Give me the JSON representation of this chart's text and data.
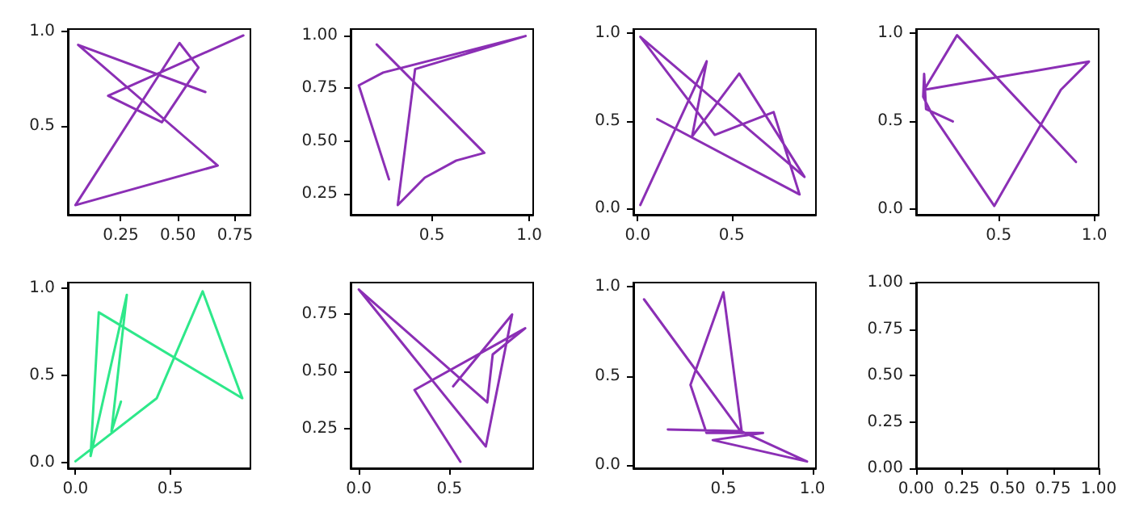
{
  "chart_data": [
    {
      "type": "line",
      "x": [
        0.62,
        0.064,
        0.674,
        0.052,
        0.507,
        0.59,
        0.43,
        0.195,
        0.786
      ],
      "series": [
        {
          "color": "#8b2fb5",
          "values": [
            0.68,
            0.93,
            0.29,
            0.08,
            0.94,
            0.81,
            0.52,
            0.66,
            0.98
          ]
        }
      ],
      "xlim": [
        0.019,
        0.817
      ],
      "ylim": [
        0.029,
        1.014
      ],
      "xticks": [
        {
          "value": 0.25,
          "label": "0.25"
        },
        {
          "value": 0.5,
          "label": "0.50"
        },
        {
          "value": 0.75,
          "label": "0.75"
        }
      ],
      "yticks": [
        {
          "value": 0.5,
          "label": "0.5"
        },
        {
          "value": 1,
          "label": "1.0"
        }
      ],
      "grid": false
    },
    {
      "type": "line",
      "x": [
        0.217,
        0.769,
        0.625,
        0.464,
        0.325,
        0.414,
        0.981,
        0.25,
        0.125,
        0.28
      ],
      "series": [
        {
          "color": "#8b2fb5",
          "values": [
            0.957,
            0.443,
            0.407,
            0.326,
            0.196,
            0.84,
            0.997,
            0.824,
            0.763,
            0.318
          ]
        }
      ],
      "xlim": [
        0.083,
        1.02
      ],
      "ylim": [
        0.15,
        1.03
      ],
      "xticks": [
        {
          "value": 0.5,
          "label": "0.5"
        },
        {
          "value": 1,
          "label": "1.0"
        }
      ],
      "yticks": [
        {
          "value": 0.25,
          "label": "0.25"
        },
        {
          "value": 0.5,
          "label": "0.50"
        },
        {
          "value": 0.75,
          "label": "0.75"
        },
        {
          "value": 1,
          "label": "1.00"
        }
      ],
      "grid": false
    },
    {
      "type": "line",
      "x": [
        0.014,
        0.367,
        0.289,
        0.54,
        0.887,
        0.014,
        0.41,
        0.723,
        0.861,
        0.104
      ],
      "series": [
        {
          "color": "#8b2fb5",
          "values": [
            0.02,
            0.84,
            0.41,
            0.77,
            0.18,
            0.98,
            0.42,
            0.55,
            0.08,
            0.51
          ]
        }
      ],
      "xlim": [
        -0.023,
        0.948
      ],
      "ylim": [
        -0.036,
        1.024
      ],
      "xticks": [
        {
          "value": 0,
          "label": "0.0"
        },
        {
          "value": 0.5,
          "label": "0.5"
        }
      ],
      "yticks": [
        {
          "value": 0,
          "label": "0.0"
        },
        {
          "value": 0.5,
          "label": "0.5"
        },
        {
          "value": 1,
          "label": "1.0"
        }
      ],
      "grid": false
    },
    {
      "type": "line",
      "x": [
        0.904,
        0.282,
        0.11,
        0.972,
        0.825,
        0.477,
        0.147,
        0.105,
        0.11,
        0.12,
        0.26
      ],
      "series": [
        {
          "color": "#8b2fb5",
          "values": [
            0.27,
            0.99,
            0.68,
            0.84,
            0.68,
            0.02,
            0.55,
            0.64,
            0.77,
            0.57,
            0.5
          ]
        }
      ],
      "xlim": [
        0.068,
        1.023
      ],
      "ylim": [
        -0.03,
        1.025
      ],
      "xticks": [
        {
          "value": 0.5,
          "label": "0.5"
        },
        {
          "value": 1,
          "label": "1.0"
        }
      ],
      "yticks": [
        {
          "value": 0,
          "label": "0.0"
        },
        {
          "value": 0.5,
          "label": "0.5"
        },
        {
          "value": 1,
          "label": "1.0"
        }
      ],
      "grid": false
    },
    {
      "type": "line",
      "x": [
        0,
        0.429,
        0.671,
        0.88,
        0.123,
        0.08,
        0.271,
        0.19,
        0.24
      ],
      "series": [
        {
          "color": "#2ee88a",
          "values": [
            0.01,
            0.37,
            0.98,
            0.37,
            0.86,
            0.04,
            0.96,
            0.18,
            0.35
          ]
        }
      ],
      "xlim": [
        -0.04,
        0.923
      ],
      "ylim": [
        -0.03,
        1.03
      ],
      "xticks": [
        {
          "value": 0,
          "label": "0.0"
        },
        {
          "value": 0.5,
          "label": "0.5"
        }
      ],
      "yticks": [
        {
          "value": 0,
          "label": "0.0"
        },
        {
          "value": 0.5,
          "label": "0.5"
        },
        {
          "value": 1,
          "label": "1.0"
        }
      ],
      "grid": false
    },
    {
      "type": "line",
      "x": [
        0.56,
        0.307,
        0.917,
        0.738,
        0.708,
        0,
        0.7,
        0.845,
        0.52
      ],
      "series": [
        {
          "color": "#8b2fb5",
          "values": [
            0.105,
            0.418,
            0.687,
            0.573,
            0.364,
            0.856,
            0.172,
            0.747,
            0.434
          ]
        }
      ],
      "xlim": [
        -0.045,
        0.961
      ],
      "ylim": [
        0.077,
        0.886
      ],
      "xticks": [
        {
          "value": 0,
          "label": "0.0"
        },
        {
          "value": 0.5,
          "label": "0.5"
        }
      ],
      "yticks": [
        {
          "value": 0.25,
          "label": "0.25"
        },
        {
          "value": 0.5,
          "label": "0.50"
        },
        {
          "value": 0.75,
          "label": "0.75"
        }
      ],
      "grid": false
    },
    {
      "type": "line",
      "x": [
        0.054,
        0.604,
        0.5,
        0.315,
        0.405,
        0.723,
        0.44,
        0.97,
        0.6,
        0.188
      ],
      "series": [
        {
          "color": "#8b2fb5",
          "values": [
            0.93,
            0.18,
            0.97,
            0.45,
            0.18,
            0.18,
            0.14,
            0.02,
            0.19,
            0.2
          ]
        }
      ],
      "xlim": [
        -0.006,
        1.02
      ],
      "ylim": [
        -0.018,
        1.024
      ],
      "xticks": [
        {
          "value": 0.5,
          "label": "0.5"
        },
        {
          "value": 1,
          "label": "1.0"
        }
      ],
      "yticks": [
        {
          "value": 0,
          "label": "0.0"
        },
        {
          "value": 0.5,
          "label": "0.5"
        },
        {
          "value": 1,
          "label": "1.0"
        }
      ],
      "grid": false
    },
    {
      "type": "line",
      "xlim": [
        0,
        1
      ],
      "ylim": [
        0,
        1
      ],
      "xticks": [
        {
          "value": 0,
          "label": "0.00"
        },
        {
          "value": 0.25,
          "label": "0.25"
        },
        {
          "value": 0.5,
          "label": "0.50"
        },
        {
          "value": 0.75,
          "label": "0.75"
        },
        {
          "value": 1,
          "label": "1.00"
        }
      ],
      "yticks": [
        {
          "value": 0,
          "label": "0.00"
        },
        {
          "value": 0.25,
          "label": "0.25"
        },
        {
          "value": 0.5,
          "label": "0.50"
        },
        {
          "value": 0.75,
          "label": "0.75"
        },
        {
          "value": 1,
          "label": "1.00"
        }
      ],
      "grid": false
    }
  ]
}
